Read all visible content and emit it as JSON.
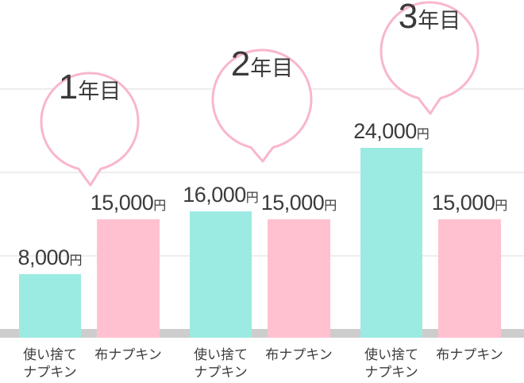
{
  "chart_data": {
    "type": "bar",
    "title": "",
    "unit_suffix": "円",
    "categories": [
      "使い捨てナプキン",
      "布ナプキン"
    ],
    "legend": "none",
    "grid": true,
    "ylim": [
      0,
      42000
    ],
    "colors": {
      "disposable_bar": "#9cebe2",
      "cloth_bar": "#ffc1d0",
      "bubble_border": "#f8b7ca",
      "bubble_fill": "#ffffff",
      "gridline": "#ededed",
      "baseline": "#cdcdcd",
      "text": "#3b3b3b",
      "background": "#ffffff"
    },
    "groups": [
      {
        "year_label": {
          "number": "1",
          "suffix": "年目",
          "full": "1年目"
        },
        "bars": [
          {
            "category": "使い捨てナプキン",
            "category_lines": [
              "使い捨て",
              "ナプキン"
            ],
            "value": 8000,
            "value_display": "8,000",
            "color_key": "disposable"
          },
          {
            "category": "布ナプキン",
            "category_lines": [
              "布ナプキン"
            ],
            "value": 15000,
            "value_display": "15,000",
            "color_key": "cloth"
          }
        ]
      },
      {
        "year_label": {
          "number": "2",
          "suffix": "年目",
          "full": "2年目"
        },
        "bars": [
          {
            "category": "使い捨てナプキン",
            "category_lines": [
              "使い捨て",
              "ナプキン"
            ],
            "value": 16000,
            "value_display": "16,000",
            "color_key": "disposable"
          },
          {
            "category": "布ナプキン",
            "category_lines": [
              "布ナプキン"
            ],
            "value": 15000,
            "value_display": "15,000",
            "color_key": "cloth"
          }
        ]
      },
      {
        "year_label": {
          "number": "3",
          "suffix": "年目",
          "full": "3年目"
        },
        "bars": [
          {
            "category": "使い捨てナプキン",
            "category_lines": [
              "使い捨て",
              "ナプキン"
            ],
            "value": 24000,
            "value_display": "24,000",
            "color_key": "disposable"
          },
          {
            "category": "布ナプキン",
            "category_lines": [
              "布ナプキン"
            ],
            "value": 15000,
            "value_display": "15,000",
            "color_key": "cloth"
          }
        ]
      }
    ]
  }
}
